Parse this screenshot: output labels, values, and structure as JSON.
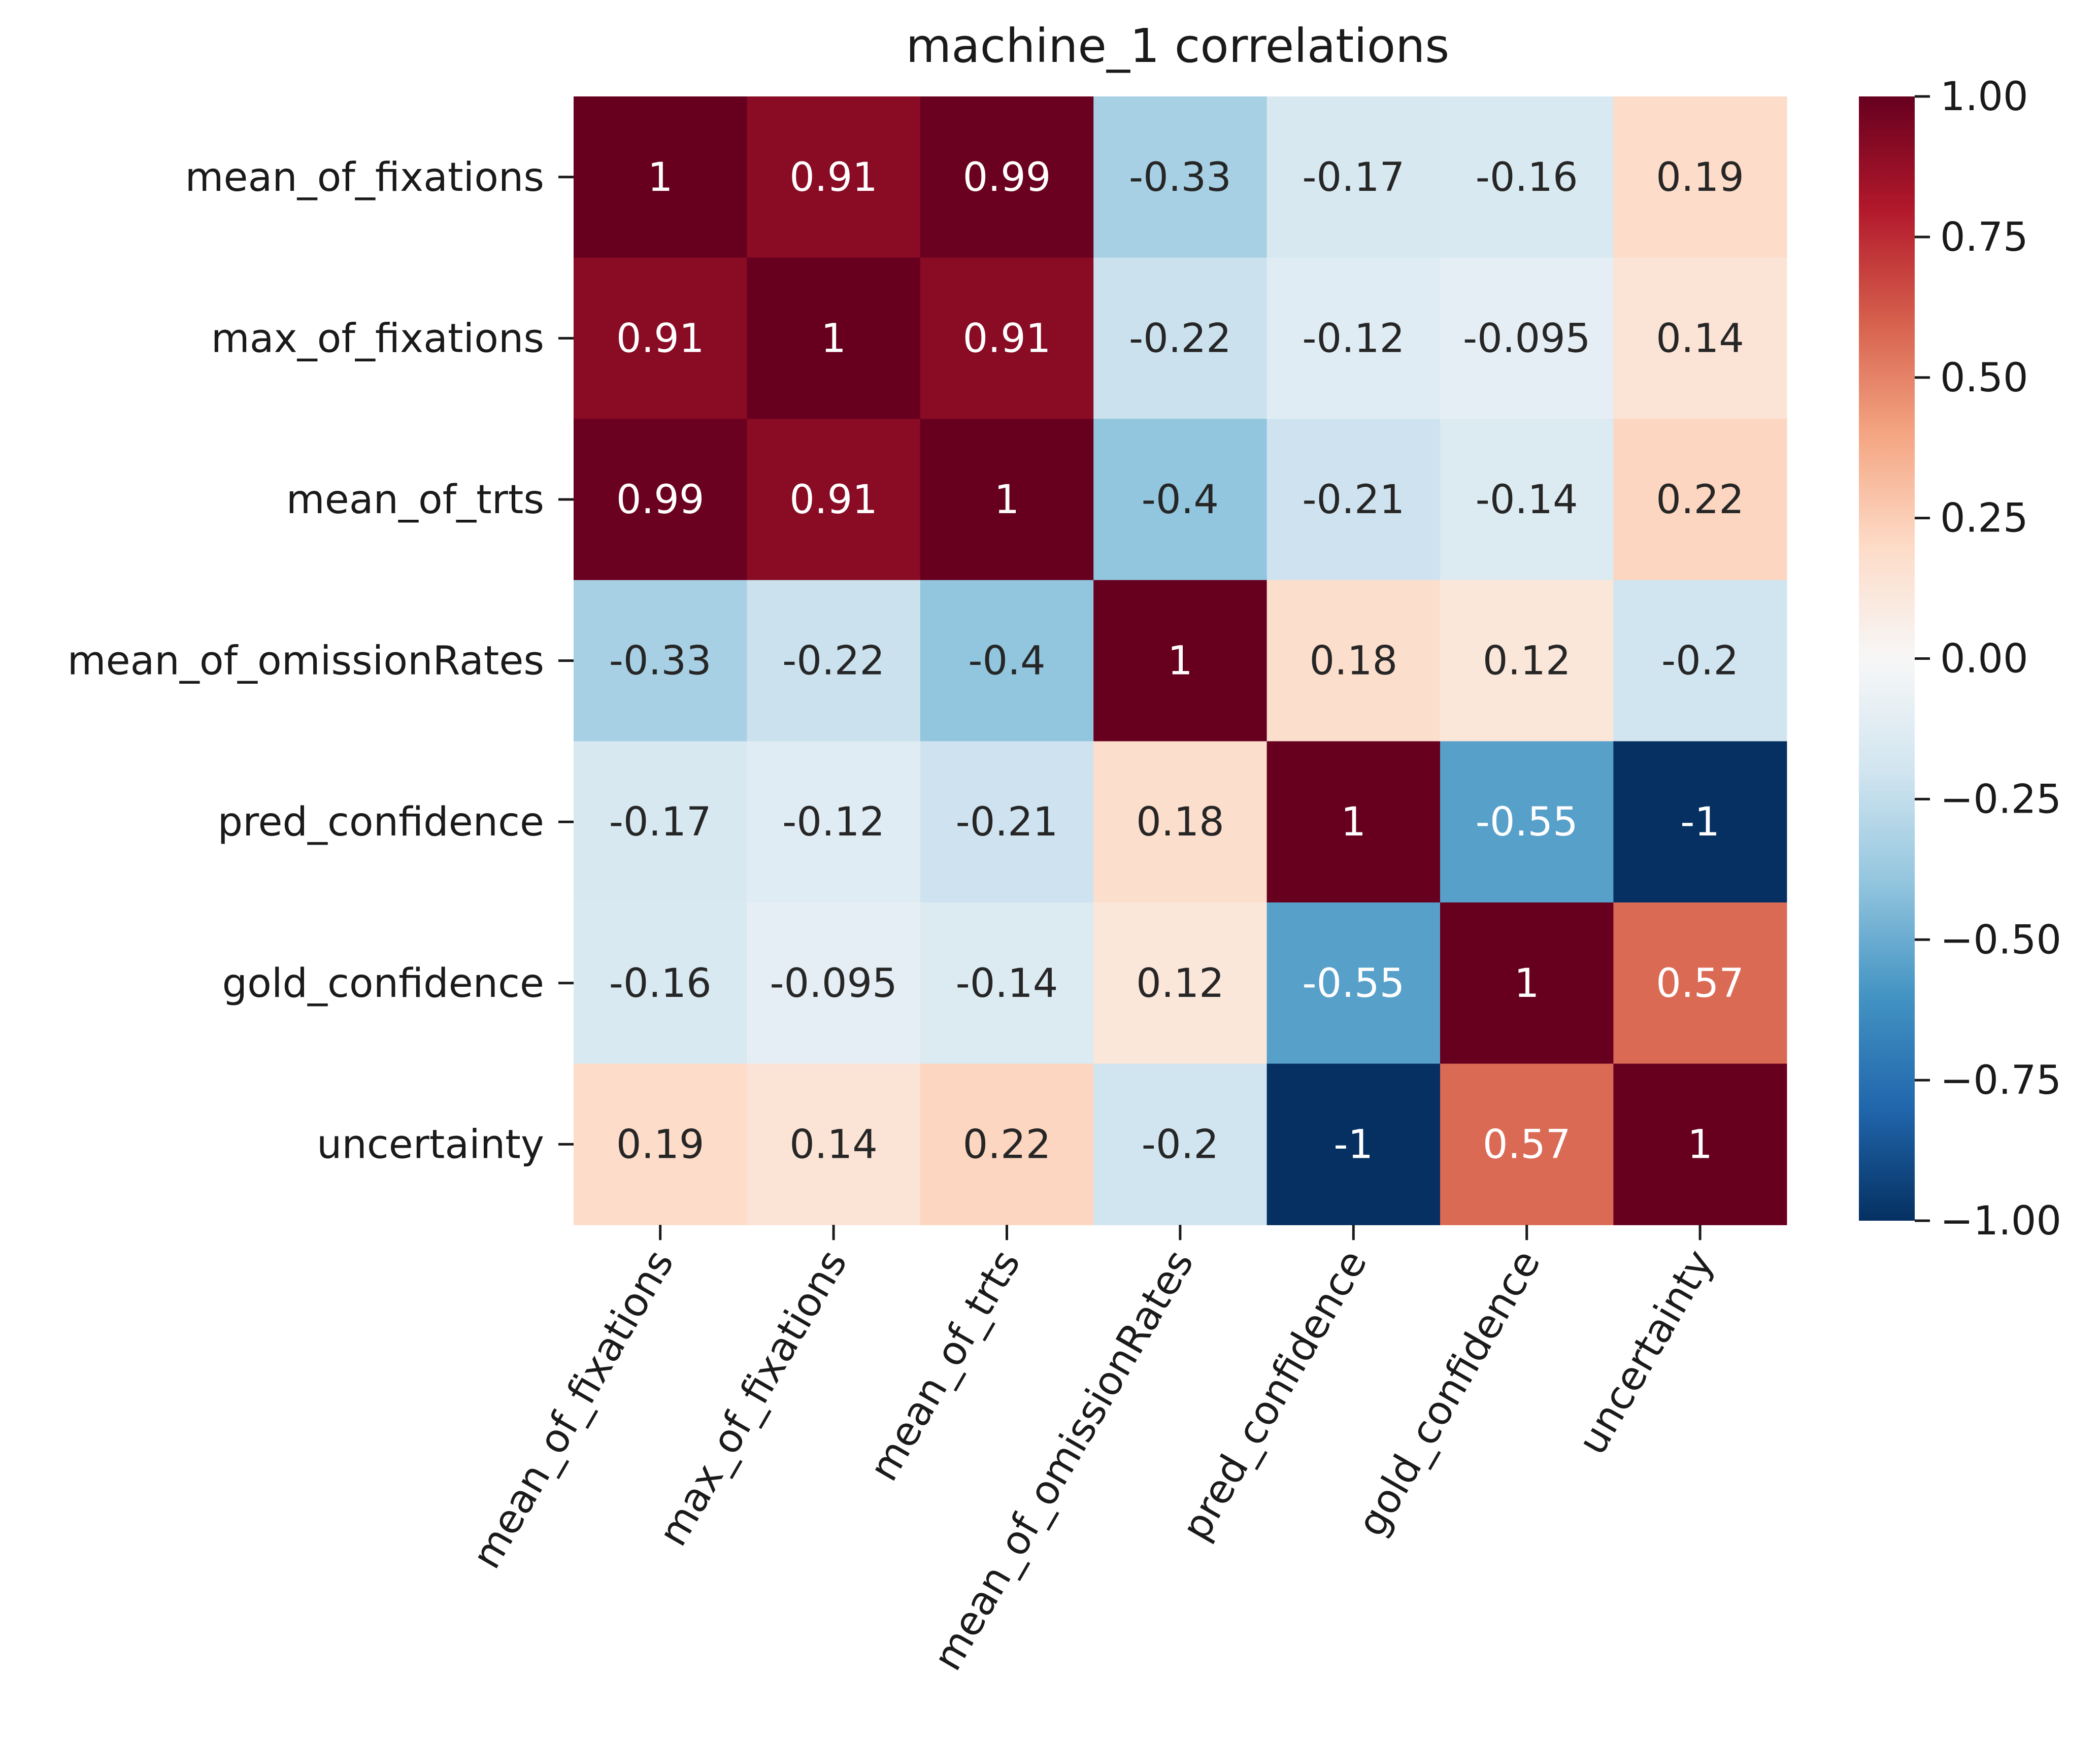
{
  "chart_data": {
    "type": "heatmap",
    "title": "machine_1 correlations",
    "xlabel": "",
    "ylabel": "",
    "row_labels": [
      "mean_of_fixations",
      "max_of_fixations",
      "mean_of_trts",
      "mean_of_omissionRates",
      "pred_confidence",
      "gold_confidence",
      "uncertainty"
    ],
    "col_labels": [
      "mean_of_fixations",
      "max_of_fixations",
      "mean_of_trts",
      "mean_of_omissionRates",
      "pred_confidence",
      "gold_confidence",
      "uncertainty"
    ],
    "values": [
      [
        1,
        0.91,
        0.99,
        -0.33,
        -0.17,
        -0.16,
        0.19
      ],
      [
        0.91,
        1,
        0.91,
        -0.22,
        -0.12,
        -0.095,
        0.14
      ],
      [
        0.99,
        0.91,
        1,
        -0.4,
        -0.21,
        -0.14,
        0.22
      ],
      [
        -0.33,
        -0.22,
        -0.4,
        1,
        0.18,
        0.12,
        -0.2
      ],
      [
        -0.17,
        -0.12,
        -0.21,
        0.18,
        1,
        -0.55,
        -1
      ],
      [
        -0.16,
        -0.095,
        -0.14,
        0.12,
        -0.55,
        1,
        0.57
      ],
      [
        0.19,
        0.14,
        0.22,
        -0.2,
        -1,
        0.57,
        1
      ]
    ],
    "annotations": [
      [
        "1",
        "0.91",
        "0.99",
        "-0.33",
        "-0.17",
        "-0.16",
        "0.19"
      ],
      [
        "0.91",
        "1",
        "0.91",
        "-0.22",
        "-0.12",
        "-0.095",
        "0.14"
      ],
      [
        "0.99",
        "0.91",
        "1",
        "-0.4",
        "-0.21",
        "-0.14",
        "0.22"
      ],
      [
        "-0.33",
        "-0.22",
        "-0.4",
        "1",
        "0.18",
        "0.12",
        "-0.2"
      ],
      [
        "-0.17",
        "-0.12",
        "-0.21",
        "0.18",
        "1",
        "-0.55",
        "-1"
      ],
      [
        "-0.16",
        "-0.095",
        "-0.14",
        "0.12",
        "-0.55",
        "1",
        "0.57"
      ],
      [
        "0.19",
        "0.14",
        "0.22",
        "-0.2",
        "-1",
        "0.57",
        "1"
      ]
    ],
    "colorscale": "RdBu_r",
    "vmin": -1,
    "vmax": 1,
    "colorbar_ticks": [
      "1.00",
      "0.75",
      "0.50",
      "0.25",
      "0.00",
      "−0.25",
      "−0.50",
      "−0.75",
      "−1.00"
    ],
    "colorbar_tick_values": [
      1,
      0.75,
      0.5,
      0.25,
      0,
      -0.25,
      -0.5,
      -0.75,
      -1
    ],
    "x_tick_rotation_deg": 60,
    "grid": false
  }
}
